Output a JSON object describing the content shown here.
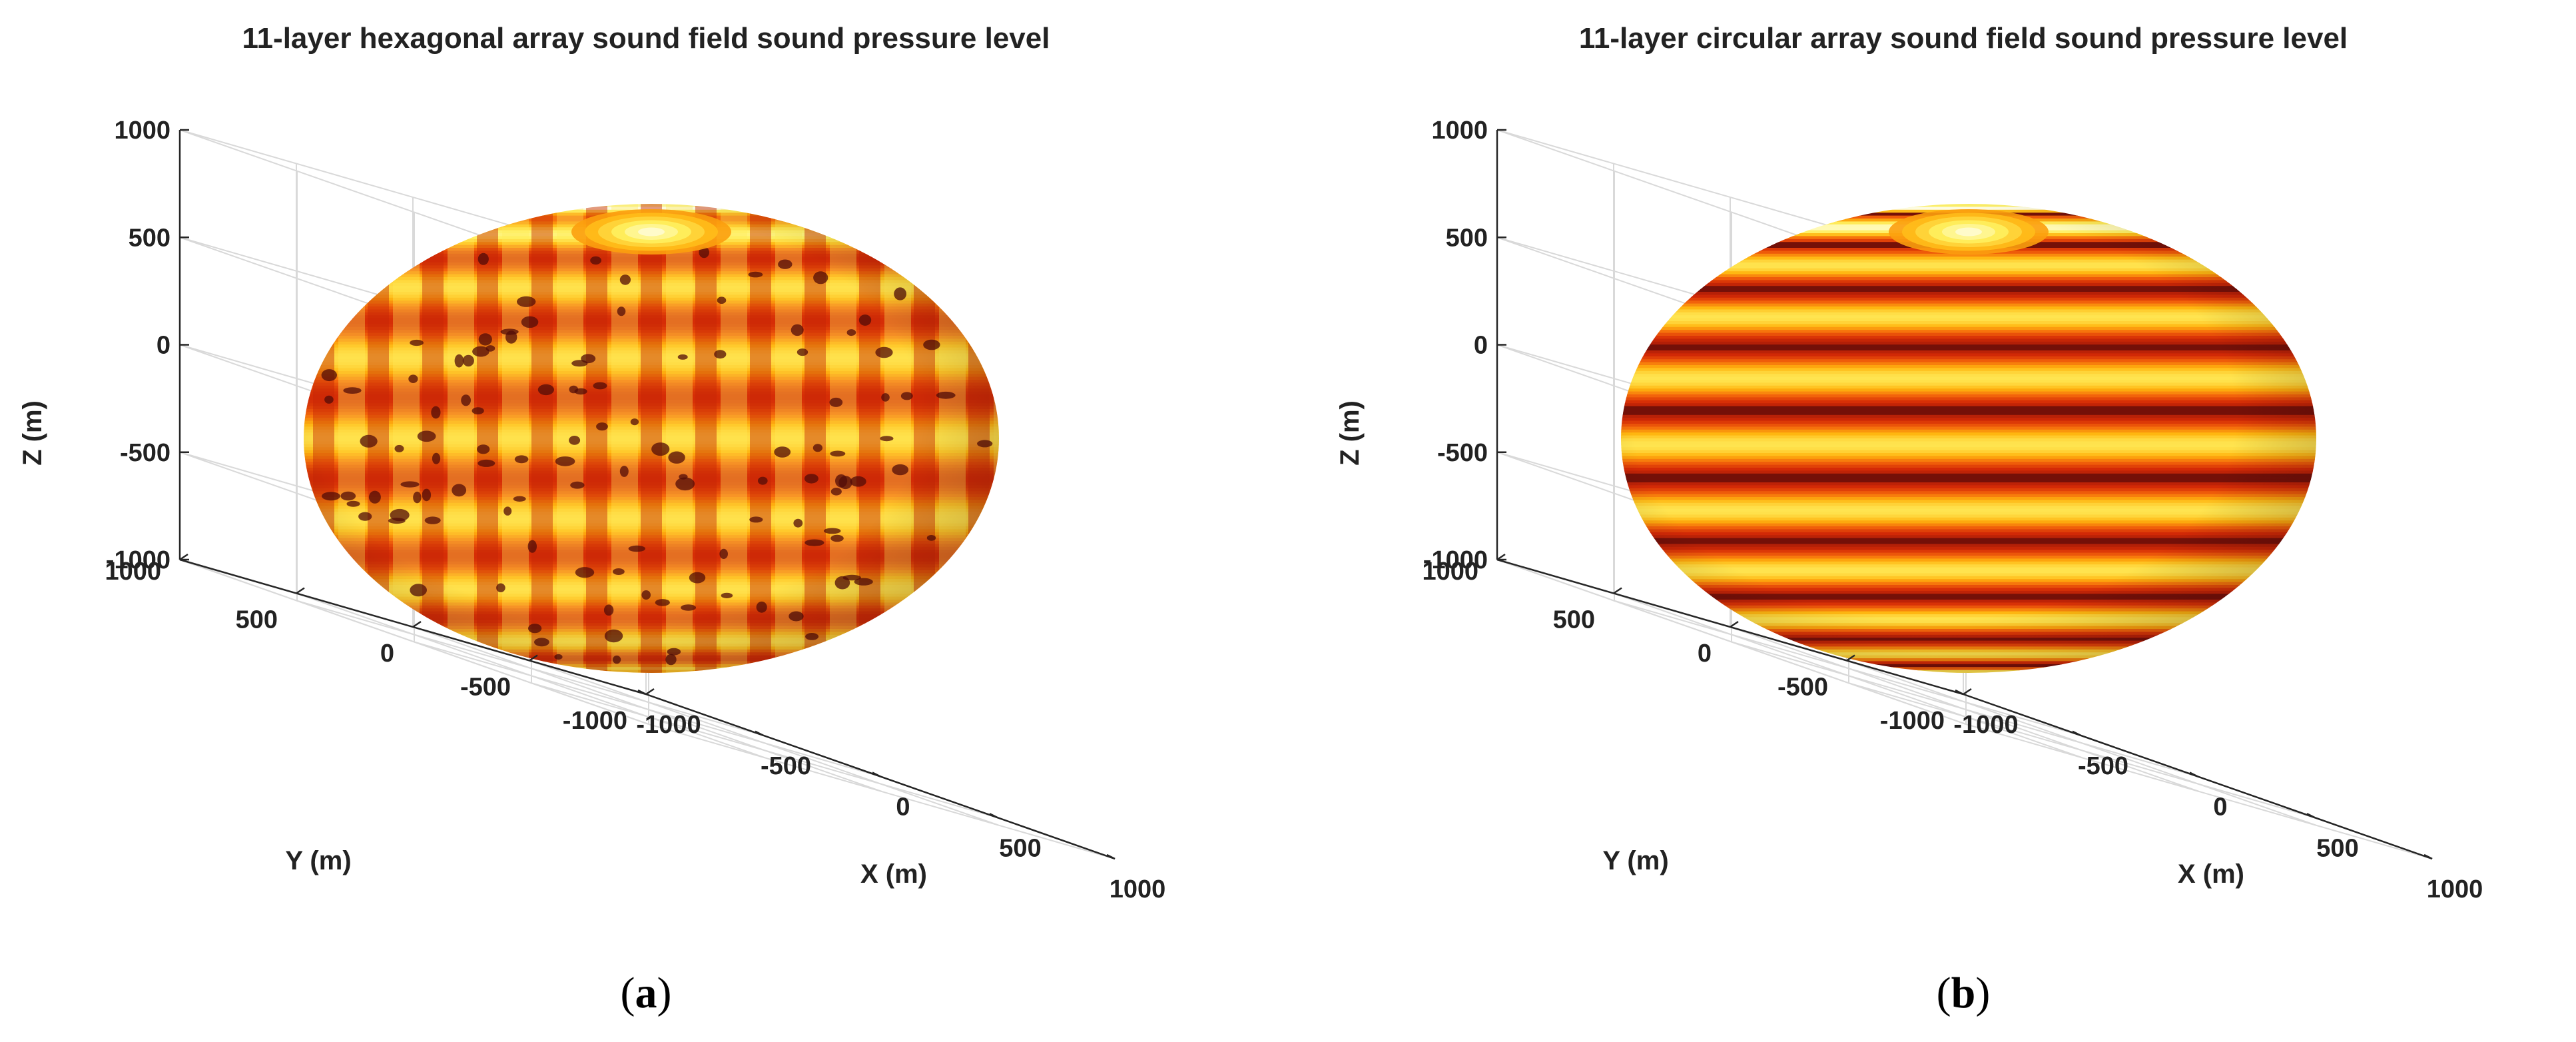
{
  "chart_data": [
    {
      "type": "3d-surface",
      "panel_label": "a",
      "title": "11-layer hexagonal array sound field sound pressure level",
      "xlabel": "X (m)",
      "ylabel": "Y (m)",
      "zlabel": "Z (m)",
      "xlim": [
        -1000,
        1000
      ],
      "ylim": [
        -1000,
        1000
      ],
      "zlim": [
        -1000,
        1000
      ],
      "x_ticks": [
        "-1000",
        "-500",
        "0",
        "500",
        "1000"
      ],
      "y_ticks": [
        "-1000",
        "-500",
        "0",
        "500",
        "1000"
      ],
      "z_ticks": [
        "-1000",
        "-500",
        "0",
        "500",
        "1000"
      ],
      "grid": true,
      "surface": "ellipsoid",
      "pattern": "hexagonal",
      "colormap": [
        "#3a0a08",
        "#8a1208",
        "#d42a06",
        "#f4660b",
        "#ffb50f",
        "#fff060",
        "#ffffe8"
      ]
    },
    {
      "type": "3d-surface",
      "panel_label": "b",
      "title": "11-layer circular array sound field sound pressure level",
      "xlabel": "X (m)",
      "ylabel": "Y (m)",
      "zlabel": "Z (m)",
      "xlim": [
        -1000,
        1000
      ],
      "ylim": [
        -1000,
        1000
      ],
      "zlim": [
        -1000,
        1000
      ],
      "x_ticks": [
        "-1000",
        "-500",
        "0",
        "500",
        "1000"
      ],
      "y_ticks": [
        "-1000",
        "-500",
        "0",
        "500",
        "1000"
      ],
      "z_ticks": [
        "-1000",
        "-500",
        "0",
        "500",
        "1000"
      ],
      "grid": true,
      "surface": "ellipsoid",
      "pattern": "circular",
      "colormap": [
        "#3a0a08",
        "#8a1208",
        "#d42a06",
        "#f4660b",
        "#ffb50f",
        "#fff060",
        "#ffffe8"
      ]
    }
  ]
}
